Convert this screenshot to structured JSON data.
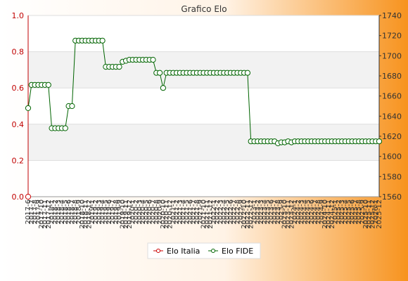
{
  "colors": {
    "background_left": "#ffffff",
    "background_right": "#f7931e",
    "elo_italia": "#cc0000",
    "elo_fide": "#006400",
    "band": "#f2f2f2",
    "legend_bg": "#ffffff"
  },
  "chart_data": {
    "type": "line",
    "title": "Grafico Elo",
    "x_tick_format": "YYYY-M",
    "x_tick_font": "vertical",
    "grid": true,
    "band_style": "alternating horizontal bands",
    "legend_placement": "bottom-center",
    "y_left": {
      "lim": [
        0,
        1
      ],
      "ticks": [
        "0.0",
        "0.2",
        "0.4",
        "0.6",
        "0.8",
        "1.0"
      ]
    },
    "y_right": {
      "lim": [
        1560,
        1740
      ],
      "ticks": [
        "1560",
        "1580",
        "1600",
        "1620",
        "1640",
        "1660",
        "1680",
        "1700",
        "1720",
        "1740"
      ]
    },
    "x_first_label": "2017-6",
    "x_last_label": "2025-12",
    "series": [
      {
        "name": "Elo Italia",
        "axis": "left",
        "marker": "diamond",
        "values": [
          0.0
        ]
      },
      {
        "name": "Elo FIDE",
        "axis": "right",
        "marker": "diamond",
        "values": [
          1648,
          1671,
          1671,
          1671,
          1671,
          1671,
          1671,
          1628,
          1628,
          1628,
          1628,
          1628,
          1650,
          1650,
          1715,
          1715,
          1715,
          1715,
          1715,
          1715,
          1715,
          1715,
          1715,
          1689,
          1689,
          1689,
          1689,
          1689,
          1694,
          1695,
          1696,
          1696,
          1696,
          1696,
          1696,
          1696,
          1696,
          1696,
          1683,
          1683,
          1668,
          1683,
          1683,
          1683,
          1683,
          1683,
          1683,
          1683,
          1683,
          1683,
          1683,
          1683,
          1683,
          1683,
          1683,
          1683,
          1683,
          1683,
          1683,
          1683,
          1683,
          1683,
          1683,
          1683,
          1683,
          1683,
          1615,
          1615,
          1615,
          1615,
          1615,
          1615,
          1615,
          1615,
          1613,
          1614,
          1614,
          1615,
          1614,
          1615,
          1615,
          1615,
          1615,
          1615,
          1615,
          1615,
          1615,
          1615,
          1615,
          1615,
          1615,
          1615,
          1615,
          1615,
          1615,
          1615,
          1615,
          1615,
          1615,
          1615,
          1615,
          1615,
          1615,
          1615,
          1615
        ]
      }
    ]
  }
}
